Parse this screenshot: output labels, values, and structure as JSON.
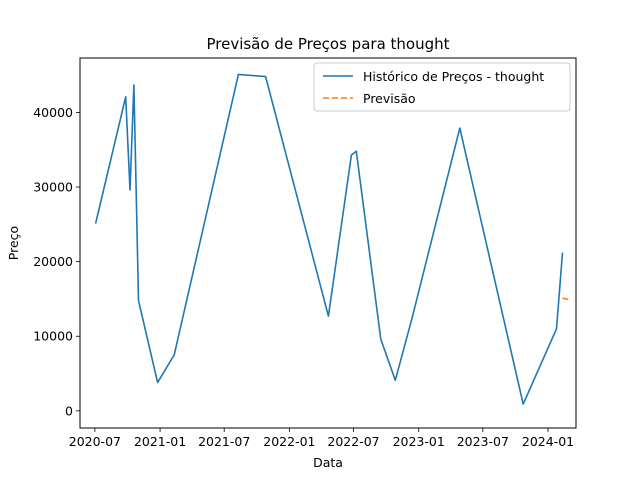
{
  "chart_data": {
    "type": "line",
    "title": "Previsão de Preços para thought",
    "xlabel": "Data",
    "ylabel": "Preço",
    "x_ticks": [
      "2020-07",
      "2021-01",
      "2021-07",
      "2022-01",
      "2022-07",
      "2023-01",
      "2023-07",
      "2024-01"
    ],
    "y_ticks": [
      0,
      10000,
      20000,
      30000,
      40000
    ],
    "x_range": [
      "2020-05-20",
      "2024-03-20"
    ],
    "ylim": [
      -2300,
      47300
    ],
    "grid": false,
    "legend_position": "upper right",
    "series": [
      {
        "name": "Histórico de Preços - thought",
        "color": "#1f77b4",
        "style": "solid",
        "points": [
          [
            "2020-07-03",
            25100
          ],
          [
            "2020-09-26",
            42100
          ],
          [
            "2020-10-08",
            29600
          ],
          [
            "2020-10-19",
            43700
          ],
          [
            "2020-11-01",
            14800
          ],
          [
            "2020-12-25",
            3800
          ],
          [
            "2021-02-10",
            7500
          ],
          [
            "2021-08-10",
            45100
          ],
          [
            "2021-10-26",
            44800
          ],
          [
            "2022-04-21",
            12700
          ],
          [
            "2022-06-25",
            34300
          ],
          [
            "2022-07-09",
            34800
          ],
          [
            "2022-09-16",
            9600
          ],
          [
            "2022-10-27",
            4100
          ],
          [
            "2022-12-13",
            12400
          ],
          [
            "2023-04-27",
            37900
          ],
          [
            "2023-10-23",
            900
          ],
          [
            "2024-01-25",
            11000
          ],
          [
            "2024-02-11",
            21200
          ]
        ]
      },
      {
        "name": "Previsão",
        "color": "#ff7f0e",
        "style": "dashed",
        "points": [
          [
            "2024-02-11",
            15100
          ],
          [
            "2024-03-01",
            14900
          ]
        ]
      }
    ]
  }
}
